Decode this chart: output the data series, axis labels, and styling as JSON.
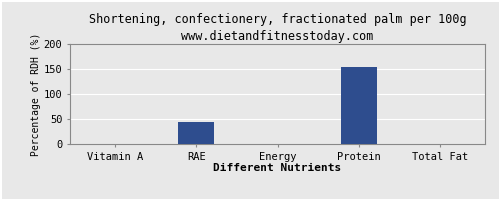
{
  "title": "Shortening, confectionery, fractionated palm per 100g",
  "subtitle": "www.dietandfitnesstoday.com",
  "categories": [
    "Vitamin A",
    "RAE",
    "Energy",
    "Protein",
    "Total Fat"
  ],
  "values": [
    0,
    45,
    0,
    155,
    0
  ],
  "bar_color": "#2e4d8e",
  "xlabel": "Different Nutrients",
  "ylabel": "Percentage of RDH (%)",
  "ylim": [
    0,
    200
  ],
  "yticks": [
    0,
    50,
    100,
    150,
    200
  ],
  "background_color": "#e8e8e8",
  "plot_bg_color": "#e8e8e8",
  "title_fontsize": 8.5,
  "subtitle_fontsize": 7.5,
  "xlabel_fontsize": 8,
  "ylabel_fontsize": 7,
  "tick_fontsize": 7.5,
  "grid_color": "#ffffff",
  "spine_color": "#888888"
}
